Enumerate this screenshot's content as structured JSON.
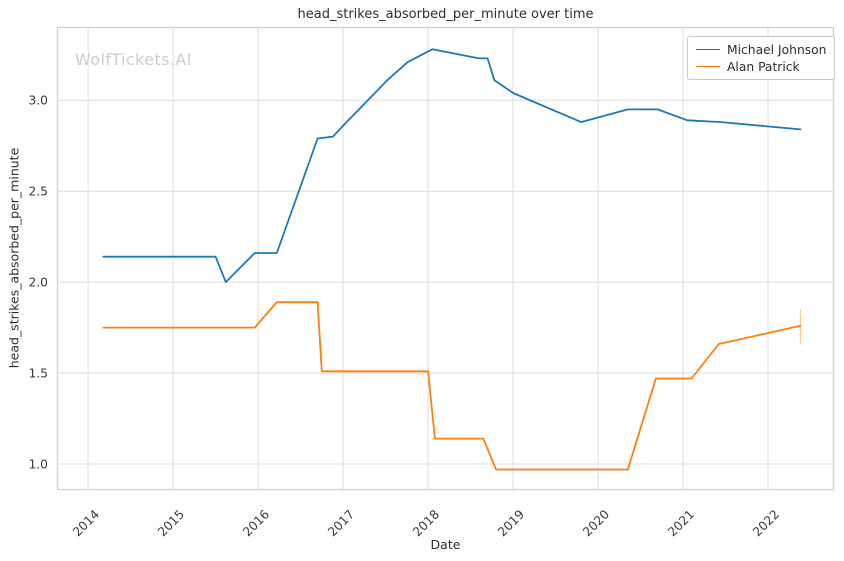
{
  "watermark": "WolfTickets.AI",
  "chart_data": {
    "type": "line",
    "title": "head_strikes_absorbed_per_minute over time",
    "xlabel": "Date",
    "ylabel": "head_strikes_absorbed_per_minute",
    "xlim": [
      2013.64,
      2022.77
    ],
    "ylim": [
      0.86,
      3.4
    ],
    "x_ticks": [
      2014,
      2015,
      2016,
      2017,
      2018,
      2019,
      2020,
      2021,
      2022
    ],
    "y_ticks": [
      "1.0",
      "1.5",
      "2.0",
      "2.5",
      "3.0"
    ],
    "grid": true,
    "legend_position": "upper right",
    "colors": {
      "grid": "#dcdcdc",
      "spine": "#cfcfcf",
      "tick_text": "#3a3a3a"
    },
    "series": [
      {
        "name": "Michael Johnson",
        "color": "#1f77b4",
        "points": [
          [
            2014.18,
            2.14
          ],
          [
            2015.5,
            2.14
          ],
          [
            2015.62,
            2.0
          ],
          [
            2015.96,
            2.16
          ],
          [
            2016.22,
            2.16
          ],
          [
            2016.7,
            2.79
          ],
          [
            2016.88,
            2.8
          ],
          [
            2017.0,
            2.86
          ],
          [
            2017.52,
            3.11
          ],
          [
            2017.76,
            3.21
          ],
          [
            2018.05,
            3.28
          ],
          [
            2018.6,
            3.23
          ],
          [
            2018.7,
            3.23
          ],
          [
            2018.78,
            3.11
          ],
          [
            2019.0,
            3.04
          ],
          [
            2019.8,
            2.88
          ],
          [
            2020.35,
            2.95
          ],
          [
            2020.7,
            2.95
          ],
          [
            2021.05,
            2.89
          ],
          [
            2021.45,
            2.88
          ],
          [
            2022.38,
            2.84
          ]
        ]
      },
      {
        "name": "Alan Patrick",
        "color": "#ff7f0e",
        "points": [
          [
            2014.18,
            1.75
          ],
          [
            2015.96,
            1.75
          ],
          [
            2016.22,
            1.89
          ],
          [
            2016.7,
            1.89
          ],
          [
            2016.75,
            1.51
          ],
          [
            2018.0,
            1.51
          ],
          [
            2018.08,
            1.14
          ],
          [
            2018.65,
            1.14
          ],
          [
            2018.8,
            0.97
          ],
          [
            2020.35,
            0.97
          ],
          [
            2020.68,
            1.47
          ],
          [
            2021.1,
            1.47
          ],
          [
            2021.42,
            1.66
          ],
          [
            2022.38,
            1.76
          ]
        ],
        "end_errorbar": {
          "x": 2022.38,
          "from": 1.66,
          "to": 1.85
        }
      }
    ]
  }
}
